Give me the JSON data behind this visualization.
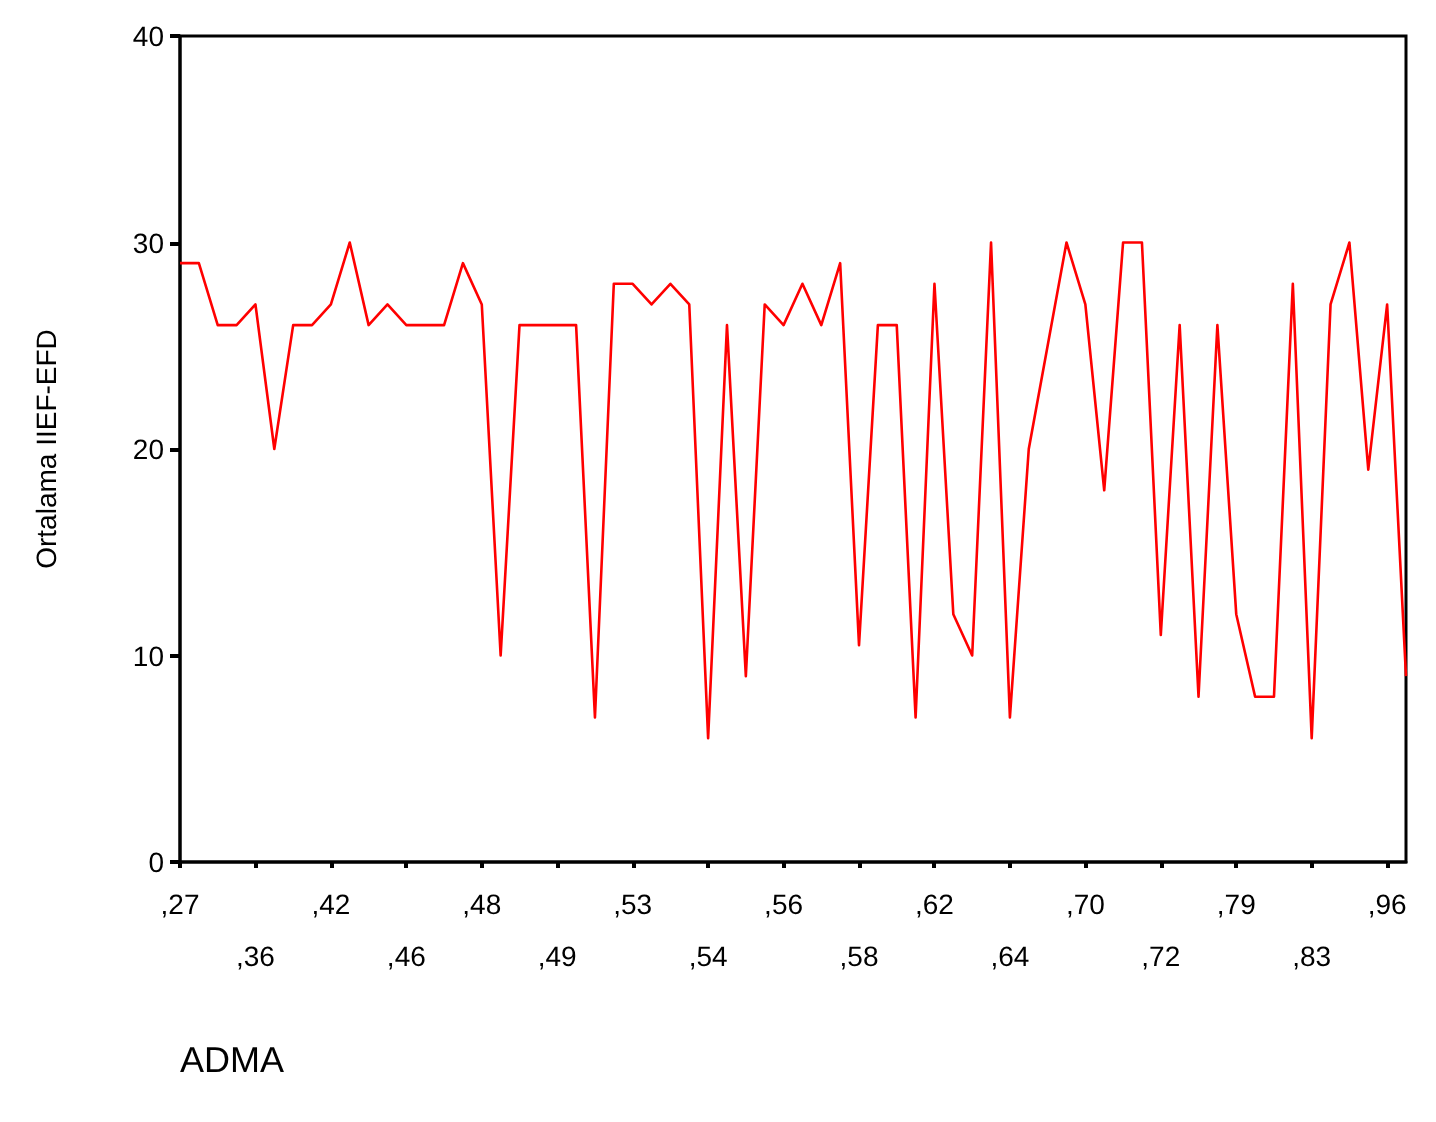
{
  "chart_data": {
    "type": "line",
    "xlabel": "ADMA",
    "ylabel": "Ortalama IIEF-EFD",
    "categories": [
      ",27",
      null,
      null,
      null,
      ",36",
      null,
      null,
      null,
      ",42",
      null,
      null,
      null,
      ",46",
      null,
      null,
      null,
      ",48",
      null,
      null,
      null,
      ",49",
      null,
      null,
      null,
      ",53",
      null,
      null,
      null,
      ",54",
      null,
      null,
      null,
      ",56",
      null,
      null,
      null,
      ",58",
      null,
      null,
      null,
      ",62",
      null,
      null,
      null,
      ",64",
      null,
      null,
      null,
      ",70",
      null,
      null,
      null,
      ",72",
      null,
      null,
      null,
      ",79",
      null,
      null,
      null,
      ",83",
      null,
      null,
      null,
      ",96",
      null
    ],
    "series": [
      {
        "color": "#ff0000",
        "values": [
          29,
          29,
          26,
          26,
          27,
          20,
          26,
          26,
          27,
          30,
          26,
          27,
          26,
          26,
          26,
          29,
          27,
          10,
          26,
          26,
          26,
          26,
          7,
          28,
          28,
          27,
          28,
          27,
          6,
          26,
          9,
          27,
          26,
          28,
          26,
          29,
          10.5,
          26,
          26,
          7,
          28,
          12,
          10,
          30,
          7,
          20,
          25,
          30,
          27,
          18,
          30,
          30,
          11,
          26,
          8,
          26,
          12,
          8,
          8,
          28,
          6,
          27,
          30,
          19,
          27,
          9
        ]
      }
    ],
    "ylim": [
      0,
      40
    ],
    "yticks": [
      0,
      10,
      20,
      30,
      40
    ],
    "marker": "none",
    "line_style": "solid"
  }
}
